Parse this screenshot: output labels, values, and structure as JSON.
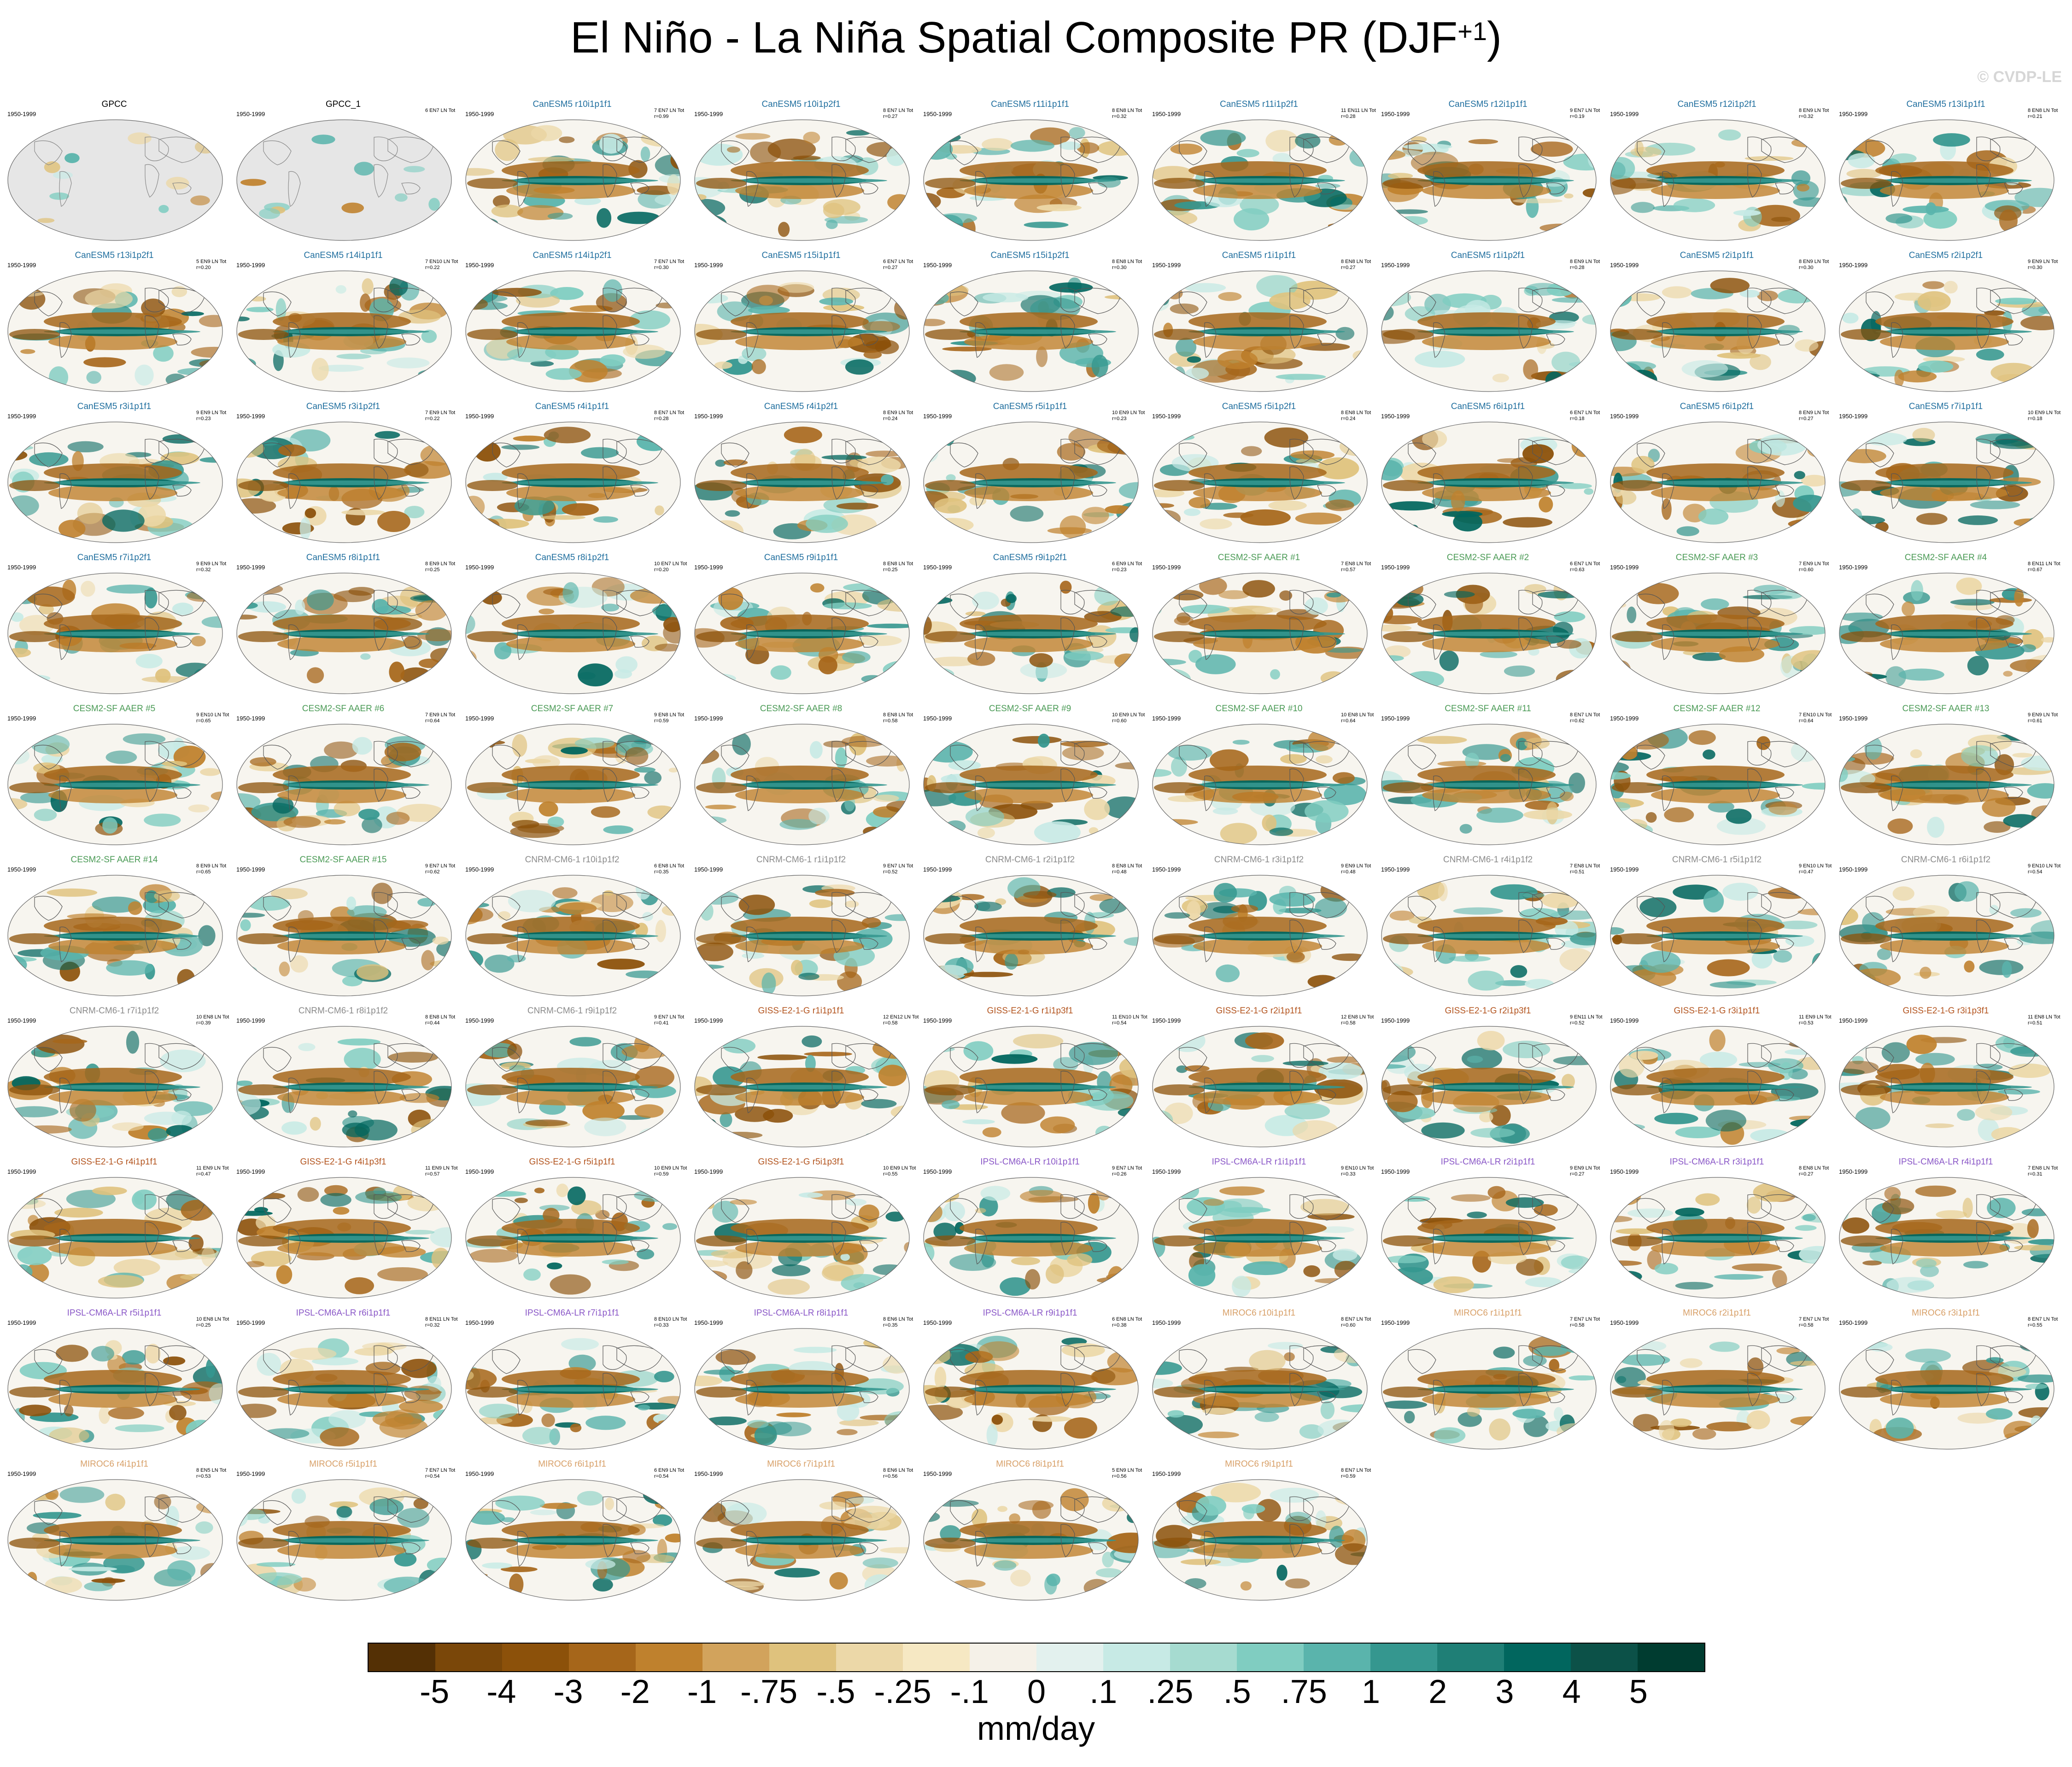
{
  "title": "El Niño - La Niña Spatial Composite PR (DJF",
  "title_sup": "+1",
  "title_close": ")",
  "copyright": "© CVDP-LE",
  "period": "1950-1999",
  "colors": {
    "GPCC": "#000000",
    "CanESM5": "#1f6e9e",
    "CESM2-SF AAER": "#4a9a55",
    "CNRM-CM6-1": "#8a8a8a",
    "GISS-E2-1-G": "#b3541e",
    "IPSL-CM6A-LR": "#8a57c7",
    "MIROC6": "#d8a068",
    "land_obs": "#e6e6e6",
    "map_bg": "#f7f5ef"
  },
  "panels": [
    {
      "name": "GPCC",
      "group": "GPCC",
      "stats1": "",
      "stats2": ""
    },
    {
      "name": "GPCC_1",
      "group": "GPCC",
      "stats1": "6 EN7 LN Tot",
      "stats2": ""
    },
    {
      "name": "CanESM5 r10i1p1f1",
      "group": "CanESM5",
      "stats1": "7 EN7 LN Tot",
      "stats2": "r=0.99"
    },
    {
      "name": "CanESM5 r10i1p2f1",
      "group": "CanESM5",
      "stats1": "8 EN7 LN Tot",
      "stats2": "r=0.27"
    },
    {
      "name": "CanESM5 r11i1p1f1",
      "group": "CanESM5",
      "stats1": "8 EN8 LN Tot",
      "stats2": "r=0.32"
    },
    {
      "name": "CanESM5 r11i1p2f1",
      "group": "CanESM5",
      "stats1": "11 EN11 LN Tot",
      "stats2": "r=0.28"
    },
    {
      "name": "CanESM5 r12i1p1f1",
      "group": "CanESM5",
      "stats1": "9 EN7 LN Tot",
      "stats2": "r=0.19"
    },
    {
      "name": "CanESM5 r12i1p2f1",
      "group": "CanESM5",
      "stats1": "8 EN9 LN Tot",
      "stats2": "r=0.32"
    },
    {
      "name": "CanESM5 r13i1p1f1",
      "group": "CanESM5",
      "stats1": "8 EN8 LN Tot",
      "stats2": "r=0.21"
    },
    {
      "name": "CanESM5 r13i1p2f1",
      "group": "CanESM5",
      "stats1": "5 EN9 LN Tot",
      "stats2": "r=0.20"
    },
    {
      "name": "CanESM5 r14i1p1f1",
      "group": "CanESM5",
      "stats1": "7 EN10 LN Tot",
      "stats2": "r=0.22"
    },
    {
      "name": "CanESM5 r14i1p2f1",
      "group": "CanESM5",
      "stats1": "7 EN7 LN Tot",
      "stats2": "r=0.30"
    },
    {
      "name": "CanESM5 r15i1p1f1",
      "group": "CanESM5",
      "stats1": "6 EN7 LN Tot",
      "stats2": "r=0.27"
    },
    {
      "name": "CanESM5 r15i1p2f1",
      "group": "CanESM5",
      "stats1": "8 EN8 LN Tot",
      "stats2": "r=0.30"
    },
    {
      "name": "CanESM5 r1i1p1f1",
      "group": "CanESM5",
      "stats1": "8 EN8 LN Tot",
      "stats2": "r=0.27"
    },
    {
      "name": "CanESM5 r1i1p2f1",
      "group": "CanESM5",
      "stats1": "8 EN9 LN Tot",
      "stats2": "r=0.28"
    },
    {
      "name": "CanESM5 r2i1p1f1",
      "group": "CanESM5",
      "stats1": "8 EN9 LN Tot",
      "stats2": "r=0.30"
    },
    {
      "name": "CanESM5 r2i1p2f1",
      "group": "CanESM5",
      "stats1": "9 EN9 LN Tot",
      "stats2": "r=0.30"
    },
    {
      "name": "CanESM5 r3i1p1f1",
      "group": "CanESM5",
      "stats1": "9 EN9 LN Tot",
      "stats2": "r=0.23"
    },
    {
      "name": "CanESM5 r3i1p2f1",
      "group": "CanESM5",
      "stats1": "7 EN9 LN Tot",
      "stats2": "r=0.22"
    },
    {
      "name": "CanESM5 r4i1p1f1",
      "group": "CanESM5",
      "stats1": "8 EN7 LN Tot",
      "stats2": "r=0.28"
    },
    {
      "name": "CanESM5 r4i1p2f1",
      "group": "CanESM5",
      "stats1": "8 EN9 LN Tot",
      "stats2": "r=0.24"
    },
    {
      "name": "CanESM5 r5i1p1f1",
      "group": "CanESM5",
      "stats1": "10 EN9 LN Tot",
      "stats2": "r=0.23"
    },
    {
      "name": "CanESM5 r5i1p2f1",
      "group": "CanESM5",
      "stats1": "8 EN8 LN Tot",
      "stats2": "r=0.24"
    },
    {
      "name": "CanESM5 r6i1p1f1",
      "group": "CanESM5",
      "stats1": "6 EN7 LN Tot",
      "stats2": "r=0.18"
    },
    {
      "name": "CanESM5 r6i1p2f1",
      "group": "CanESM5",
      "stats1": "8 EN9 LN Tot",
      "stats2": "r=0.27"
    },
    {
      "name": "CanESM5 r7i1p1f1",
      "group": "CanESM5",
      "stats1": "10 EN9 LN Tot",
      "stats2": "r=0.18"
    },
    {
      "name": "CanESM5 r7i1p2f1",
      "group": "CanESM5",
      "stats1": "9 EN9 LN Tot",
      "stats2": "r=0.32"
    },
    {
      "name": "CanESM5 r8i1p1f1",
      "group": "CanESM5",
      "stats1": "8 EN9 LN Tot",
      "stats2": "r=0.25"
    },
    {
      "name": "CanESM5 r8i1p2f1",
      "group": "CanESM5",
      "stats1": "10 EN7 LN Tot",
      "stats2": "r=0.20"
    },
    {
      "name": "CanESM5 r9i1p1f1",
      "group": "CanESM5",
      "stats1": "8 EN8 LN Tot",
      "stats2": "r=0.25"
    },
    {
      "name": "CanESM5 r9i1p2f1",
      "group": "CanESM5",
      "stats1": "6 EN9 LN Tot",
      "stats2": "r=0.23"
    },
    {
      "name": "CESM2-SF AAER #1",
      "group": "CESM2-SF AAER",
      "stats1": "7 EN8 LN Tot",
      "stats2": "r=0.57"
    },
    {
      "name": "CESM2-SF AAER #2",
      "group": "CESM2-SF AAER",
      "stats1": "6 EN7 LN Tot",
      "stats2": "r=0.63"
    },
    {
      "name": "CESM2-SF AAER #3",
      "group": "CESM2-SF AAER",
      "stats1": "7 EN9 LN Tot",
      "stats2": "r=0.60"
    },
    {
      "name": "CESM2-SF AAER #4",
      "group": "CESM2-SF AAER",
      "stats1": "8 EN11 LN Tot",
      "stats2": "r=0.67"
    },
    {
      "name": "CESM2-SF AAER #5",
      "group": "CESM2-SF AAER",
      "stats1": "9 EN10 LN Tot",
      "stats2": "r=0.65"
    },
    {
      "name": "CESM2-SF AAER #6",
      "group": "CESM2-SF AAER",
      "stats1": "7 EN9 LN Tot",
      "stats2": "r=0.64"
    },
    {
      "name": "CESM2-SF AAER #7",
      "group": "CESM2-SF AAER",
      "stats1": "9 EN8 LN Tot",
      "stats2": "r=0.59"
    },
    {
      "name": "CESM2-SF AAER #8",
      "group": "CESM2-SF AAER",
      "stats1": "8 EN8 LN Tot",
      "stats2": "r=0.58"
    },
    {
      "name": "CESM2-SF AAER #9",
      "group": "CESM2-SF AAER",
      "stats1": "10 EN9 LN Tot",
      "stats2": "r=0.60"
    },
    {
      "name": "CESM2-SF AAER #10",
      "group": "CESM2-SF AAER",
      "stats1": "10 EN8 LN Tot",
      "stats2": "r=0.64"
    },
    {
      "name": "CESM2-SF AAER #11",
      "group": "CESM2-SF AAER",
      "stats1": "8 EN7 LN Tot",
      "stats2": "r=0.62"
    },
    {
      "name": "CESM2-SF AAER #12",
      "group": "CESM2-SF AAER",
      "stats1": "7 EN10 LN Tot",
      "stats2": "r=0.64"
    },
    {
      "name": "CESM2-SF AAER #13",
      "group": "CESM2-SF AAER",
      "stats1": "9 EN9 LN Tot",
      "stats2": "r=0.61"
    },
    {
      "name": "CESM2-SF AAER #14",
      "group": "CESM2-SF AAER",
      "stats1": "8 EN9 LN Tot",
      "stats2": "r=0.65"
    },
    {
      "name": "CESM2-SF AAER #15",
      "group": "CESM2-SF AAER",
      "stats1": "9 EN7 LN Tot",
      "stats2": "r=0.62"
    },
    {
      "name": "CNRM-CM6-1 r10i1p1f2",
      "group": "CNRM-CM6-1",
      "stats1": "6 EN8 LN Tot",
      "stats2": "r=0.35"
    },
    {
      "name": "CNRM-CM6-1 r1i1p1f2",
      "group": "CNRM-CM6-1",
      "stats1": "9 EN7 LN Tot",
      "stats2": "r=0.52"
    },
    {
      "name": "CNRM-CM6-1 r2i1p1f2",
      "group": "CNRM-CM6-1",
      "stats1": "8 EN8 LN Tot",
      "stats2": "r=0.48"
    },
    {
      "name": "CNRM-CM6-1 r3i1p1f2",
      "group": "CNRM-CM6-1",
      "stats1": "9 EN9 LN Tot",
      "stats2": "r=0.48"
    },
    {
      "name": "CNRM-CM6-1 r4i1p1f2",
      "group": "CNRM-CM6-1",
      "stats1": "7 EN8 LN Tot",
      "stats2": "r=0.51"
    },
    {
      "name": "CNRM-CM6-1 r5i1p1f2",
      "group": "CNRM-CM6-1",
      "stats1": "9 EN10 LN Tot",
      "stats2": "r=0.47"
    },
    {
      "name": "CNRM-CM6-1 r6i1p1f2",
      "group": "CNRM-CM6-1",
      "stats1": "9 EN10 LN Tot",
      "stats2": "r=0.54"
    },
    {
      "name": "CNRM-CM6-1 r7i1p1f2",
      "group": "CNRM-CM6-1",
      "stats1": "10 EN8 LN Tot",
      "stats2": "r=0.39"
    },
    {
      "name": "CNRM-CM6-1 r8i1p1f2",
      "group": "CNRM-CM6-1",
      "stats1": "8 EN8 LN Tot",
      "stats2": "r=0.44"
    },
    {
      "name": "CNRM-CM6-1 r9i1p1f2",
      "group": "CNRM-CM6-1",
      "stats1": "9 EN7 LN Tot",
      "stats2": "r=0.41"
    },
    {
      "name": "GISS-E2-1-G r1i1p1f1",
      "group": "GISS-E2-1-G",
      "stats1": "12 EN12 LN Tot",
      "stats2": "r=0.58"
    },
    {
      "name": "GISS-E2-1-G r1i1p3f1",
      "group": "GISS-E2-1-G",
      "stats1": "11 EN10 LN Tot",
      "stats2": "r=0.54"
    },
    {
      "name": "GISS-E2-1-G r2i1p1f1",
      "group": "GISS-E2-1-G",
      "stats1": "12 EN8 LN Tot",
      "stats2": "r=0.58"
    },
    {
      "name": "GISS-E2-1-G r2i1p3f1",
      "group": "GISS-E2-1-G",
      "stats1": "9 EN11 LN Tot",
      "stats2": "r=0.52"
    },
    {
      "name": "GISS-E2-1-G r3i1p1f1",
      "group": "GISS-E2-1-G",
      "stats1": "11 EN9 LN Tot",
      "stats2": "r=0.53"
    },
    {
      "name": "GISS-E2-1-G r3i1p3f1",
      "group": "GISS-E2-1-G",
      "stats1": "11 EN8 LN Tot",
      "stats2": "r=0.51"
    },
    {
      "name": "GISS-E2-1-G r4i1p1f1",
      "group": "GISS-E2-1-G",
      "stats1": "11 EN9 LN Tot",
      "stats2": "r=0.47"
    },
    {
      "name": "GISS-E2-1-G r4i1p3f1",
      "group": "GISS-E2-1-G",
      "stats1": "11 EN9 LN Tot",
      "stats2": "r=0.57"
    },
    {
      "name": "GISS-E2-1-G r5i1p1f1",
      "group": "GISS-E2-1-G",
      "stats1": "10 EN9 LN Tot",
      "stats2": "r=0.59"
    },
    {
      "name": "GISS-E2-1-G r5i1p3f1",
      "group": "GISS-E2-1-G",
      "stats1": "10 EN9 LN Tot",
      "stats2": "r=0.55"
    },
    {
      "name": "IPSL-CM6A-LR r10i1p1f1",
      "group": "IPSL-CM6A-LR",
      "stats1": "9 EN7 LN Tot",
      "stats2": "r=0.26"
    },
    {
      "name": "IPSL-CM6A-LR r1i1p1f1",
      "group": "IPSL-CM6A-LR",
      "stats1": "9 EN10 LN Tot",
      "stats2": "r=0.33"
    },
    {
      "name": "IPSL-CM6A-LR r2i1p1f1",
      "group": "IPSL-CM6A-LR",
      "stats1": "9 EN9 LN Tot",
      "stats2": "r=0.27"
    },
    {
      "name": "IPSL-CM6A-LR r3i1p1f1",
      "group": "IPSL-CM6A-LR",
      "stats1": "8 EN8 LN Tot",
      "stats2": "r=0.27"
    },
    {
      "name": "IPSL-CM6A-LR r4i1p1f1",
      "group": "IPSL-CM6A-LR",
      "stats1": "7 EN8 LN Tot",
      "stats2": "r=0.31"
    },
    {
      "name": "IPSL-CM6A-LR r5i1p1f1",
      "group": "IPSL-CM6A-LR",
      "stats1": "10 EN8 LN Tot",
      "stats2": "r=0.25"
    },
    {
      "name": "IPSL-CM6A-LR r6i1p1f1",
      "group": "IPSL-CM6A-LR",
      "stats1": "8 EN11 LN Tot",
      "stats2": "r=0.32"
    },
    {
      "name": "IPSL-CM6A-LR r7i1p1f1",
      "group": "IPSL-CM6A-LR",
      "stats1": "8 EN10 LN Tot",
      "stats2": "r=0.33"
    },
    {
      "name": "IPSL-CM6A-LR r8i1p1f1",
      "group": "IPSL-CM6A-LR",
      "stats1": "8 EN6 LN Tot",
      "stats2": "r=0.35"
    },
    {
      "name": "IPSL-CM6A-LR r9i1p1f1",
      "group": "IPSL-CM6A-LR",
      "stats1": "6 EN8 LN Tot",
      "stats2": "r=0.38"
    },
    {
      "name": "MIROC6 r10i1p1f1",
      "group": "MIROC6",
      "stats1": "8 EN7 LN Tot",
      "stats2": "r=0.60"
    },
    {
      "name": "MIROC6 r1i1p1f1",
      "group": "MIROC6",
      "stats1": "7 EN7 LN Tot",
      "stats2": "r=0.58"
    },
    {
      "name": "MIROC6 r2i1p1f1",
      "group": "MIROC6",
      "stats1": "7 EN7 LN Tot",
      "stats2": "r=0.58"
    },
    {
      "name": "MIROC6 r3i1p1f1",
      "group": "MIROC6",
      "stats1": "8 EN7 LN Tot",
      "stats2": "r=0.55"
    },
    {
      "name": "MIROC6 r4i1p1f1",
      "group": "MIROC6",
      "stats1": "8 EN5 LN Tot",
      "stats2": "r=0.53"
    },
    {
      "name": "MIROC6 r5i1p1f1",
      "group": "MIROC6",
      "stats1": "7 EN7 LN Tot",
      "stats2": "r=0.54"
    },
    {
      "name": "MIROC6 r6i1p1f1",
      "group": "MIROC6",
      "stats1": "6 EN9 LN Tot",
      "stats2": "r=0.54"
    },
    {
      "name": "MIROC6 r7i1p1f1",
      "group": "MIROC6",
      "stats1": "8 EN6 LN Tot",
      "stats2": "r=0.56"
    },
    {
      "name": "MIROC6 r8i1p1f1",
      "group": "MIROC6",
      "stats1": "5 EN9 LN Tot",
      "stats2": "r=0.56"
    },
    {
      "name": "MIROC6 r9i1p1f1",
      "group": "MIROC6",
      "stats1": "8 EN7 LN Tot",
      "stats2": "r=0.59"
    }
  ],
  "colorbar": {
    "unit": "mm/day",
    "labels": [
      "-5",
      "-4",
      "-3",
      "-2",
      "-1",
      "-.75",
      "-.5",
      "-.25",
      "-.1",
      "0",
      ".1",
      ".25",
      ".5",
      ".75",
      "1",
      "2",
      "3",
      "4",
      "5"
    ],
    "colors": [
      "#543005",
      "#7a4709",
      "#8c510a",
      "#a6661a",
      "#bf812d",
      "#d2a35c",
      "#dfc27d",
      "#ecd8a8",
      "#f6e8c3",
      "#f5f1e8",
      "#e3f1ee",
      "#c7eae5",
      "#a6dbd0",
      "#80cdc1",
      "#5ab4ac",
      "#35978f",
      "#1f7f76",
      "#01665e",
      "#0c5148",
      "#003c30"
    ]
  }
}
